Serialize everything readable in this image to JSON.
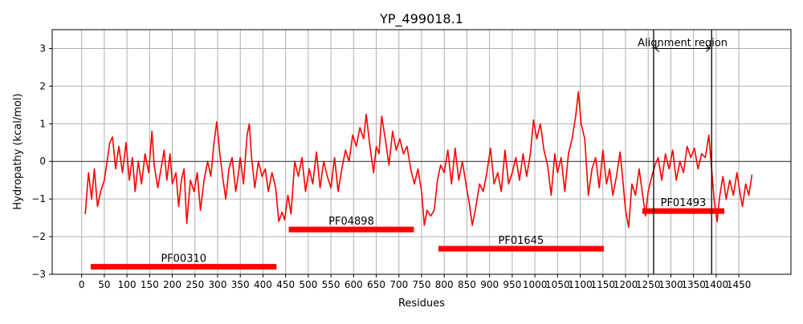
{
  "chart_data": {
    "type": "line",
    "title": "YP_499018.1",
    "xlabel": "Residues",
    "ylabel": "Hydropathy (kcal/mol)",
    "xlim": [
      -65,
      1565
    ],
    "ylim": [
      -3,
      3.5
    ],
    "xticks": [
      0,
      50,
      100,
      150,
      200,
      250,
      300,
      350,
      400,
      450,
      500,
      550,
      600,
      650,
      700,
      750,
      800,
      850,
      900,
      950,
      1000,
      1050,
      1100,
      1150,
      1200,
      1250,
      1300,
      1350,
      1400,
      1450
    ],
    "yticks": [
      -3,
      -2,
      -1,
      0,
      1,
      2,
      3
    ],
    "grid": true,
    "line_color": "#ff0000",
    "hydropathy": [
      [
        8,
        -1.4
      ],
      [
        15,
        -0.3
      ],
      [
        22,
        -1.0
      ],
      [
        28,
        -0.2
      ],
      [
        35,
        -1.2
      ],
      [
        42,
        -0.8
      ],
      [
        50,
        -0.5
      ],
      [
        55,
        -0.1
      ],
      [
        62,
        0.5
      ],
      [
        68,
        0.65
      ],
      [
        75,
        -0.2
      ],
      [
        82,
        0.4
      ],
      [
        90,
        -0.3
      ],
      [
        98,
        0.5
      ],
      [
        105,
        -0.5
      ],
      [
        112,
        0.1
      ],
      [
        118,
        -0.8
      ],
      [
        125,
        0.0
      ],
      [
        132,
        -0.6
      ],
      [
        140,
        0.2
      ],
      [
        148,
        -0.3
      ],
      [
        155,
        0.8
      ],
      [
        160,
        -0.1
      ],
      [
        168,
        -0.7
      ],
      [
        175,
        -0.2
      ],
      [
        182,
        0.3
      ],
      [
        188,
        -0.5
      ],
      [
        195,
        0.2
      ],
      [
        200,
        -0.6
      ],
      [
        208,
        -0.3
      ],
      [
        214,
        -1.2
      ],
      [
        220,
        -0.5
      ],
      [
        226,
        -0.2
      ],
      [
        232,
        -1.65
      ],
      [
        240,
        -0.5
      ],
      [
        248,
        -0.8
      ],
      [
        255,
        -0.3
      ],
      [
        262,
        -1.3
      ],
      [
        270,
        -0.5
      ],
      [
        278,
        0.0
      ],
      [
        285,
        -0.4
      ],
      [
        292,
        0.5
      ],
      [
        298,
        1.05
      ],
      [
        305,
        0.2
      ],
      [
        312,
        -0.5
      ],
      [
        318,
        -1.0
      ],
      [
        325,
        -0.2
      ],
      [
        332,
        0.1
      ],
      [
        340,
        -0.8
      ],
      [
        345,
        -0.4
      ],
      [
        350,
        0.1
      ],
      [
        357,
        -0.6
      ],
      [
        365,
        0.7
      ],
      [
        370,
        1.0
      ],
      [
        375,
        0.1
      ],
      [
        382,
        -0.7
      ],
      [
        390,
        0.0
      ],
      [
        398,
        -0.4
      ],
      [
        405,
        -0.2
      ],
      [
        412,
        -0.8
      ],
      [
        420,
        -0.3
      ],
      [
        428,
        -0.7
      ],
      [
        435,
        -1.6
      ],
      [
        442,
        -1.35
      ],
      [
        448,
        -1.55
      ],
      [
        455,
        -0.9
      ],
      [
        462,
        -1.4
      ],
      [
        470,
        0.0
      ],
      [
        478,
        -0.4
      ],
      [
        486,
        0.1
      ],
      [
        494,
        -0.8
      ],
      [
        502,
        -0.2
      ],
      [
        510,
        -0.6
      ],
      [
        518,
        0.25
      ],
      [
        526,
        -0.7
      ],
      [
        534,
        0.0
      ],
      [
        542,
        -0.4
      ],
      [
        550,
        -0.7
      ],
      [
        558,
        0.1
      ],
      [
        566,
        -0.8
      ],
      [
        574,
        -0.2
      ],
      [
        582,
        0.3
      ],
      [
        590,
        0.0
      ],
      [
        598,
        0.7
      ],
      [
        606,
        0.4
      ],
      [
        614,
        0.9
      ],
      [
        622,
        0.6
      ],
      [
        628,
        1.25
      ],
      [
        636,
        0.4
      ],
      [
        644,
        -0.3
      ],
      [
        650,
        0.4
      ],
      [
        656,
        0.2
      ],
      [
        662,
        1.2
      ],
      [
        670,
        0.6
      ],
      [
        678,
        -0.1
      ],
      [
        686,
        0.8
      ],
      [
        694,
        0.3
      ],
      [
        702,
        0.6
      ],
      [
        710,
        0.2
      ],
      [
        718,
        0.4
      ],
      [
        726,
        -0.2
      ],
      [
        734,
        -0.6
      ],
      [
        742,
        -0.2
      ],
      [
        750,
        -0.8
      ],
      [
        756,
        -1.7
      ],
      [
        762,
        -1.3
      ],
      [
        770,
        -1.45
      ],
      [
        778,
        -1.3
      ],
      [
        785,
        -0.5
      ],
      [
        792,
        -0.1
      ],
      [
        800,
        -0.3
      ],
      [
        808,
        0.3
      ],
      [
        816,
        -0.6
      ],
      [
        824,
        0.35
      ],
      [
        832,
        -0.5
      ],
      [
        840,
        0.0
      ],
      [
        848,
        -0.6
      ],
      [
        855,
        -1.1
      ],
      [
        862,
        -1.7
      ],
      [
        870,
        -1.2
      ],
      [
        878,
        -0.6
      ],
      [
        886,
        -0.8
      ],
      [
        894,
        -0.3
      ],
      [
        902,
        0.35
      ],
      [
        910,
        -0.6
      ],
      [
        918,
        -0.3
      ],
      [
        926,
        -0.8
      ],
      [
        934,
        0.3
      ],
      [
        942,
        -0.6
      ],
      [
        950,
        -0.3
      ],
      [
        958,
        0.1
      ],
      [
        966,
        -0.5
      ],
      [
        974,
        0.2
      ],
      [
        982,
        -0.4
      ],
      [
        990,
        0.2
      ],
      [
        997,
        1.1
      ],
      [
        1004,
        0.6
      ],
      [
        1012,
        1.0
      ],
      [
        1020,
        0.3
      ],
      [
        1028,
        -0.1
      ],
      [
        1036,
        -0.9
      ],
      [
        1044,
        0.2
      ],
      [
        1050,
        -0.3
      ],
      [
        1058,
        0.1
      ],
      [
        1066,
        -0.8
      ],
      [
        1074,
        0.2
      ],
      [
        1082,
        0.6
      ],
      [
        1090,
        1.2
      ],
      [
        1096,
        1.85
      ],
      [
        1102,
        1.0
      ],
      [
        1110,
        0.6
      ],
      [
        1118,
        -0.9
      ],
      [
        1126,
        -0.2
      ],
      [
        1134,
        0.1
      ],
      [
        1142,
        -0.7
      ],
      [
        1150,
        0.3
      ],
      [
        1158,
        -0.6
      ],
      [
        1165,
        -0.2
      ],
      [
        1172,
        -0.9
      ],
      [
        1180,
        -0.4
      ],
      [
        1188,
        0.25
      ],
      [
        1194,
        -0.5
      ],
      [
        1200,
        -1.3
      ],
      [
        1207,
        -1.75
      ],
      [
        1214,
        -0.6
      ],
      [
        1222,
        -0.9
      ],
      [
        1230,
        -0.2
      ],
      [
        1238,
        -0.9
      ],
      [
        1244,
        -1.45
      ],
      [
        1250,
        -0.8
      ],
      [
        1258,
        -0.4
      ],
      [
        1265,
        -0.1
      ],
      [
        1272,
        0.1
      ],
      [
        1280,
        -0.5
      ],
      [
        1288,
        0.2
      ],
      [
        1296,
        -0.2
      ],
      [
        1304,
        0.3
      ],
      [
        1312,
        -0.5
      ],
      [
        1320,
        0.0
      ],
      [
        1328,
        -0.3
      ],
      [
        1336,
        0.4
      ],
      [
        1344,
        0.1
      ],
      [
        1352,
        0.35
      ],
      [
        1360,
        -0.2
      ],
      [
        1368,
        0.2
      ],
      [
        1376,
        0.1
      ],
      [
        1384,
        0.7
      ],
      [
        1390,
        -0.2
      ],
      [
        1396,
        -1.1
      ],
      [
        1402,
        -1.6
      ],
      [
        1408,
        -0.9
      ],
      [
        1415,
        -0.4
      ],
      [
        1422,
        -1.0
      ],
      [
        1430,
        -0.5
      ],
      [
        1438,
        -0.9
      ],
      [
        1446,
        -0.3
      ],
      [
        1452,
        -0.8
      ],
      [
        1458,
        -1.2
      ],
      [
        1465,
        -0.6
      ],
      [
        1472,
        -0.9
      ],
      [
        1479,
        -0.35
      ]
    ],
    "domains": [
      {
        "name": "PF00310",
        "start": 20,
        "end": 430,
        "y": -2.8
      },
      {
        "name": "PF04898",
        "start": 457,
        "end": 733,
        "y": -1.81
      },
      {
        "name": "PF01645",
        "start": 787,
        "end": 1152,
        "y": -2.32
      },
      {
        "name": "PF01493",
        "start": 1237,
        "end": 1418,
        "y": -1.32
      }
    ],
    "domain_color": "#ff0000",
    "alignment_region": {
      "label": "Alignment region",
      "start": 1262,
      "end": 1390,
      "arrow_y": 3.0
    }
  }
}
